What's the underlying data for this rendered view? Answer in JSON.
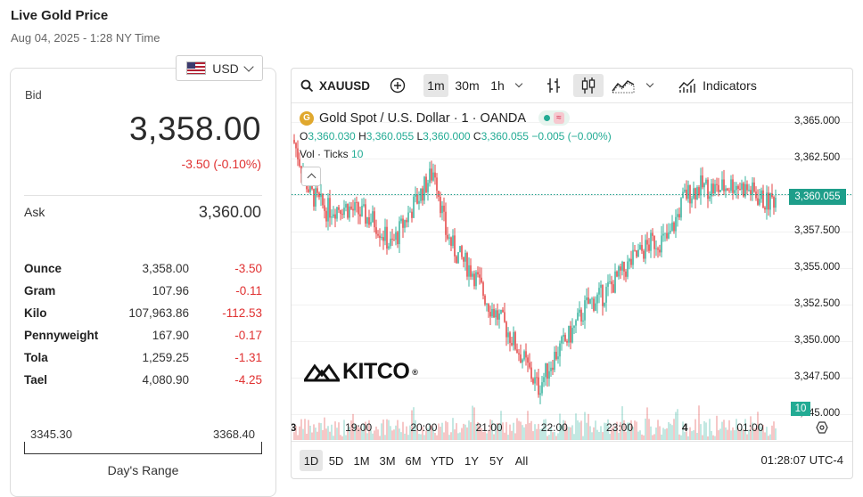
{
  "header": {
    "title": "Live Gold Price",
    "subtitle": "Aug 04, 2025 - 1:28 NY Time"
  },
  "currency": {
    "selected": "USD",
    "icon": "us-flag-icon"
  },
  "bid": {
    "label": "Bid",
    "value": "3,358.00",
    "change": "-3.50 (-0.10%)"
  },
  "ask": {
    "label": "Ask",
    "value": "3,360.00"
  },
  "units": [
    {
      "name": "Ounce",
      "price": "3,358.00",
      "change": "-3.50"
    },
    {
      "name": "Gram",
      "price": "107.96",
      "change": "-0.11"
    },
    {
      "name": "Kilo",
      "price": "107,963.86",
      "change": "-112.53"
    },
    {
      "name": "Pennyweight",
      "price": "167.90",
      "change": "-0.17"
    },
    {
      "name": "Tola",
      "price": "1,259.25",
      "change": "-1.31"
    },
    {
      "name": "Tael",
      "price": "4,080.90",
      "change": "-4.25"
    }
  ],
  "days_range": {
    "low": "3345.30",
    "high": "3368.40",
    "label": "Day's Range"
  },
  "toolbar": {
    "symbol": "XAUUSD",
    "intervals": [
      "1m",
      "30m",
      "1h"
    ],
    "active_interval": "1m",
    "indicators_label": "Indicators"
  },
  "legend": {
    "instrument": "Gold Spot / U.S. Dollar · 1 · OANDA",
    "coin_letter": "G",
    "o_label": "O",
    "o": "3,360.030",
    "h_label": "H",
    "h": "3,360.055",
    "l_label": "L",
    "l": "3,360.000",
    "c_label": "C",
    "c": "3,360.055",
    "change": "−0.005 (−0.00%)",
    "vol_label": "Vol · Ticks",
    "vol_value": "10"
  },
  "price_tag": "3,360.055",
  "volume_tag": "10",
  "logo": {
    "text": "KITCO",
    "mark": "®"
  },
  "ranges": [
    "1D",
    "5D",
    "1M",
    "3M",
    "6M",
    "YTD",
    "1Y",
    "5Y",
    "All"
  ],
  "active_range": "1D",
  "clock": "01:28:07 UTC-4",
  "colors": {
    "up": "#22ab94",
    "down": "#e03131",
    "gold": "#e0a82e"
  },
  "chart_data": {
    "type": "candlestick",
    "y_ticks": [
      "3,365.000",
      "3,362.500",
      "3,360.000",
      "3,357.500",
      "3,355.000",
      "3,352.500",
      "3,350.000",
      "3,347.500",
      "3,345.000"
    ],
    "x_ticks": [
      "3",
      "19:00",
      "20:00",
      "21:00",
      "22:00",
      "23:00",
      "4",
      "01:00"
    ],
    "ylim": [
      3343.2,
      3366.3
    ],
    "x": [
      "18:00",
      "18:15",
      "18:30",
      "18:45",
      "19:00",
      "19:15",
      "19:30",
      "19:45",
      "20:00",
      "20:10",
      "20:20",
      "20:30",
      "20:45",
      "21:00",
      "21:15",
      "21:30",
      "21:45",
      "22:00",
      "22:15",
      "22:30",
      "22:45",
      "23:00",
      "23:15",
      "23:30",
      "23:45",
      "00:00",
      "00:15",
      "00:30",
      "00:45",
      "01:00",
      "01:15",
      "01:28"
    ],
    "values": [
      3363.8,
      3360.2,
      3359.0,
      3359.3,
      3358.8,
      3358.2,
      3356.5,
      3358.6,
      3360.5,
      3361.8,
      3357.5,
      3356.0,
      3354.8,
      3352.5,
      3351.0,
      3349.0,
      3346.8,
      3349.0,
      3350.5,
      3352.5,
      3353.2,
      3354.5,
      3355.8,
      3356.8,
      3357.0,
      3360.0,
      3360.6,
      3360.4,
      3360.8,
      3360.3,
      3359.5,
      3360.055
    ],
    "volume_ticks": 10
  }
}
